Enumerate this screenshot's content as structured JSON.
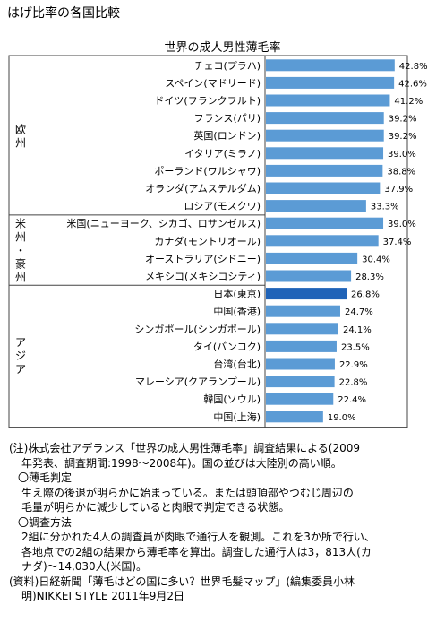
{
  "page_title": "はげ比率の各国比較",
  "chart_data": {
    "type": "bar",
    "orientation": "horizontal",
    "title": "世界の成人男性薄毛率",
    "unit": "%",
    "bar_color": "#5b9bd5",
    "highlight_color": "#1f63b8",
    "highlight_category": "日本(東京)",
    "categories": [
      "チェコ(プラハ)",
      "スペイン(マドリード)",
      "ドイツ(フランクフルト)",
      "フランス(パリ)",
      "英国(ロンドン)",
      "イタリア(ミラノ)",
      "ポーランド(ワルシャワ)",
      "オランダ(アムステルダム)",
      "ロシア(モスクワ)",
      "米国(ニューヨーク、シカゴ、ロサンゼルス)",
      "カナダ(モントリオール)",
      "オーストラリア(シドニー)",
      "メキシコ(メキシコシティ)",
      "日本(東京)",
      "中国(香港)",
      "シンガポール(シンガポール)",
      "タイ(バンコク)",
      "台湾(台北)",
      "マレーシア(クアランプール)",
      "韓国(ソウル)",
      "中国(上海)"
    ],
    "values": [
      42.8,
      42.6,
      41.2,
      39.2,
      39.2,
      39.0,
      38.8,
      37.9,
      33.3,
      39.0,
      37.4,
      30.4,
      28.3,
      26.8,
      24.7,
      24.1,
      23.5,
      22.9,
      22.8,
      22.4,
      19.0
    ],
    "value_labels": [
      "42.8%",
      "42.6%",
      "41.2%",
      "39.2%",
      "39.2%",
      "39.0%",
      "38.8%",
      "37.9%",
      "33.3%",
      "39.0%",
      "37.4%",
      "30.4%",
      "28.3%",
      "26.8%",
      "24.7%",
      "24.1%",
      "23.5%",
      "22.9%",
      "22.8%",
      "22.4%",
      "19.0%"
    ],
    "groups": [
      {
        "label": "欧州",
        "count": 9
      },
      {
        "label": "米州・豪州",
        "count": 4
      },
      {
        "label": "アジア",
        "count": 8
      }
    ]
  },
  "notes": {
    "note_1a": "(注)株式会社アデランス「世界の成人男性薄毛率」調査結果による(2009",
    "note_1b": "年発表、調査期間:1998～2008年)。国の並びは大陸別の高い順。",
    "heading_criteria": "〇薄毛判定",
    "criteria_1": "生え際の後退が明らかに始まっている。または頭頂部やつむじ周辺の",
    "criteria_2": "毛量が明らかに減少していると肉眼で判定できる状態。",
    "heading_method": "〇調査方法",
    "method_1": "2組に分かれた4人の調査員が肉眼で通行人を観測。これを3か所で行い、",
    "method_2": "各地点での2組の結果から薄毛率を算出。調査した通行人は3，813人(カ",
    "method_3": "ナダ)～14,030人(米国)。",
    "source_1": "(資料)日経新聞「薄毛はどの国に多い？世界毛髪マップ」(編集委員小林",
    "source_2": "明)NIKKEI STYLE 2011年9月2日"
  }
}
